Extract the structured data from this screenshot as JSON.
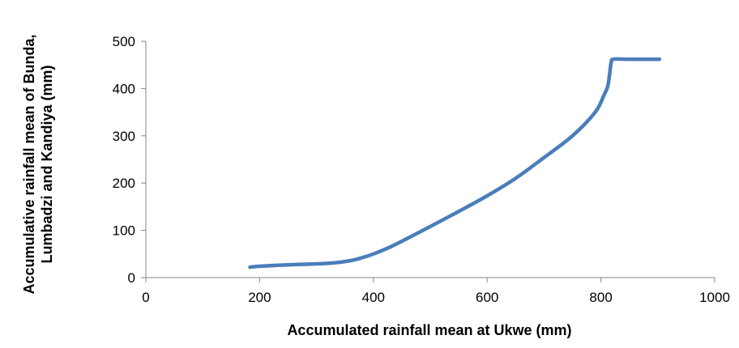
{
  "chart_data": {
    "type": "line",
    "title": "",
    "xlabel": "Accumulated rainfall mean at Ukwe (mm)",
    "ylabel_lines": [
      "Accumulative  rainfall mean of Bunda,",
      "Lumbadzi  and Kandiya (mm)"
    ],
    "xlim": [
      0,
      1000
    ],
    "ylim": [
      0,
      500
    ],
    "x_ticks": [
      0,
      200,
      400,
      600,
      800,
      1000
    ],
    "y_ticks": [
      0,
      100,
      200,
      300,
      400,
      500
    ],
    "grid": false,
    "legend": "none",
    "line_color": "#4a7ebb",
    "series": [
      {
        "x": [
          183,
          200,
          250,
          300,
          330,
          360,
          380,
          400,
          430,
          460,
          500,
          550,
          600,
          650,
          700,
          750,
          790,
          805,
          812,
          815,
          818,
          822,
          850,
          903
        ],
        "y": [
          22,
          24,
          27,
          29,
          31,
          36,
          42,
          50,
          65,
          83,
          108,
          140,
          173,
          210,
          254,
          300,
          350,
          385,
          405,
          428,
          455,
          462,
          462,
          462
        ]
      }
    ]
  }
}
